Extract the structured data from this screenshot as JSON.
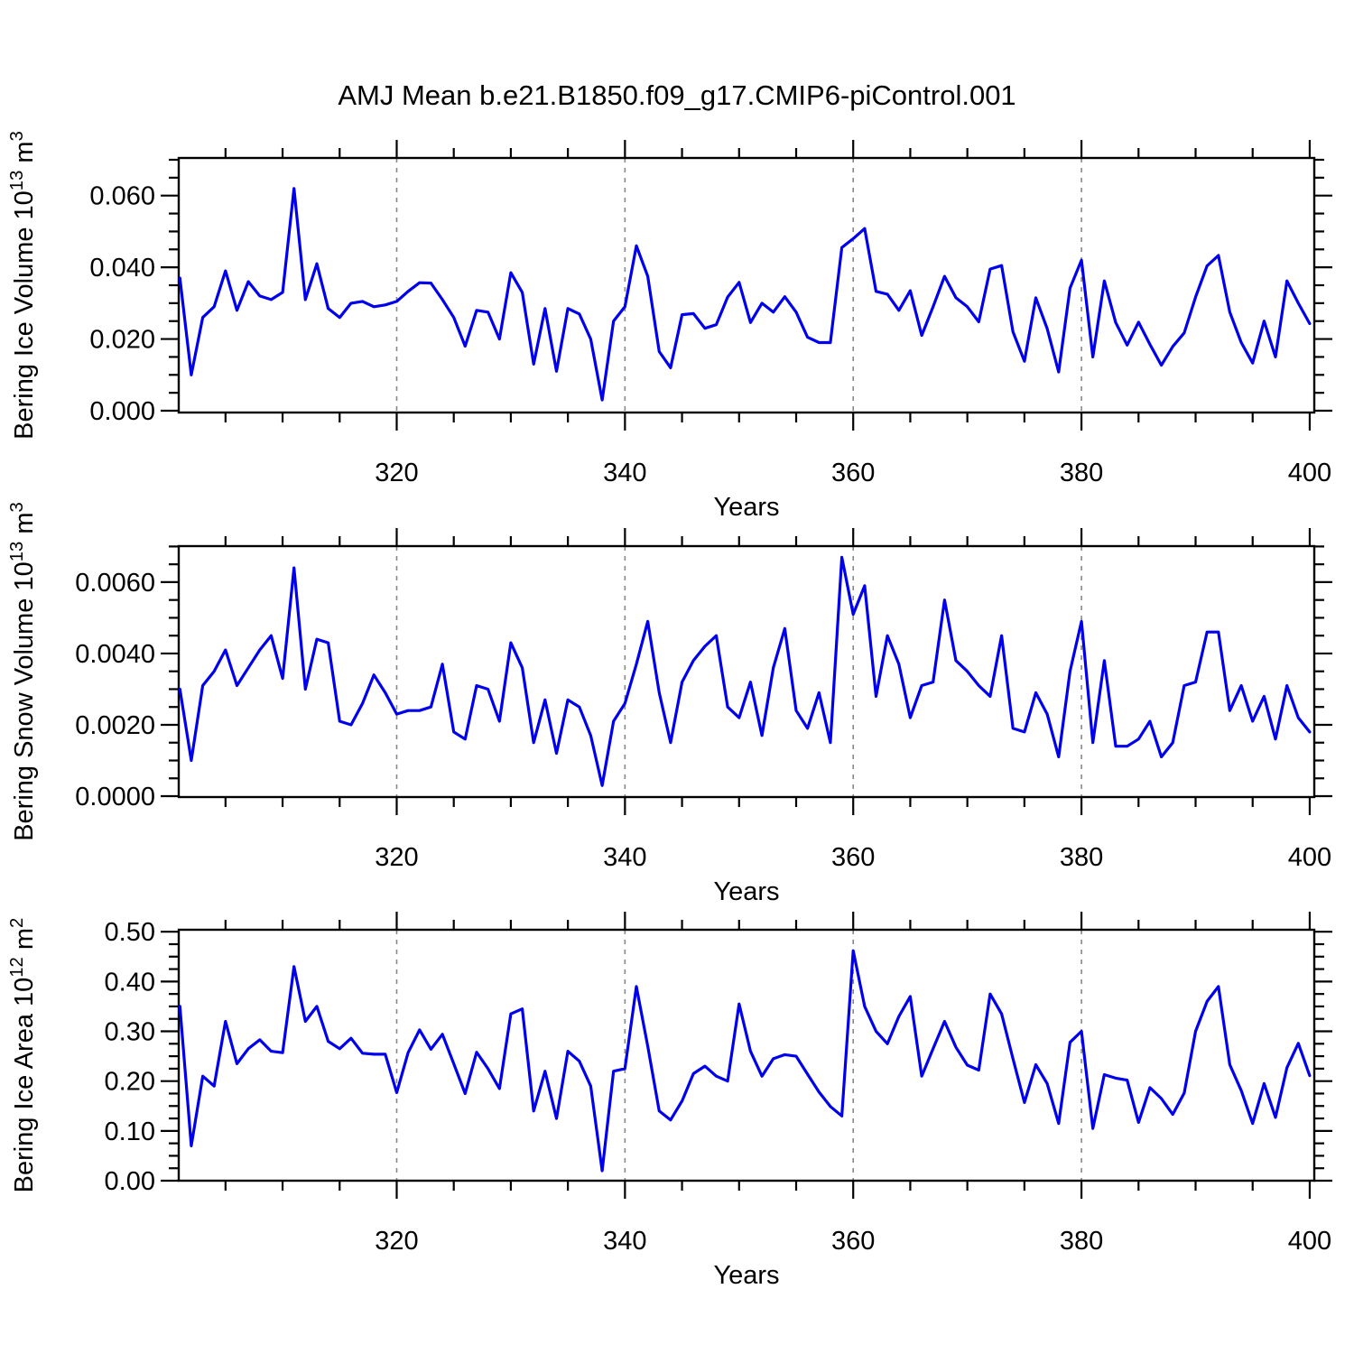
{
  "title": "AMJ Mean b.e21.B1850.f09_g17.CMIP6-piControl.001",
  "line_color": "#0000ee",
  "grid_color": "#888888",
  "axis_color": "#000000",
  "chart_data": [
    {
      "type": "line",
      "id": "ice-volume",
      "ylabel": "Bering Ice Volume 10^{13} m^{3}",
      "xlabel": "Years",
      "xlim": [
        300.9,
        400.4
      ],
      "ylim": [
        -0.0005,
        0.0705
      ],
      "xticks": [
        320,
        340,
        360,
        380,
        400
      ],
      "xtick_labels": [
        "320",
        "340",
        "360",
        "380",
        "400"
      ],
      "x_minor_step": 5,
      "yticks": [
        0.0,
        0.02,
        0.04,
        0.06
      ],
      "ytick_labels": [
        "0.000",
        "0.020",
        "0.040",
        "0.060"
      ],
      "y_minor_step": 0.005,
      "grid_x": [
        320,
        340,
        360,
        380
      ],
      "legend": "none",
      "x_start": 301,
      "x_step": 1,
      "values": [
        0.037,
        0.01,
        0.026,
        0.029,
        0.039,
        0.028,
        0.036,
        0.032,
        0.031,
        0.033,
        0.062,
        0.031,
        0.041,
        0.0285,
        0.026,
        0.03,
        0.0305,
        0.029,
        0.0295,
        0.0305,
        0.0333,
        0.0357,
        0.0356,
        0.031,
        0.026,
        0.018,
        0.028,
        0.0275,
        0.02,
        0.0385,
        0.033,
        0.013,
        0.0285,
        0.011,
        0.0285,
        0.027,
        0.02,
        0.003,
        0.025,
        0.029,
        0.046,
        0.0375,
        0.0165,
        0.012,
        0.0268,
        0.0271,
        0.023,
        0.024,
        0.0317,
        0.0358,
        0.0246,
        0.03,
        0.0275,
        0.0318,
        0.0275,
        0.0205,
        0.019,
        0.019,
        0.0455,
        0.048,
        0.0508,
        0.0333,
        0.0325,
        0.028,
        0.0335,
        0.021,
        0.029,
        0.0375,
        0.0315,
        0.029,
        0.0248,
        0.0395,
        0.0405,
        0.022,
        0.0138,
        0.0315,
        0.0229,
        0.0108,
        0.0342,
        0.042,
        0.015,
        0.0362,
        0.0246,
        0.0183,
        0.0247,
        0.0185,
        0.0127,
        0.0179,
        0.0217,
        0.0317,
        0.0404,
        0.0433,
        0.0275,
        0.019,
        0.0133,
        0.025,
        0.015,
        0.0362,
        0.03,
        0.0243
      ]
    },
    {
      "type": "line",
      "id": "snow-volume",
      "ylabel": "Bering Snow Volume 10^{13} m^{3}",
      "xlabel": "Years",
      "xlim": [
        300.9,
        400.4
      ],
      "ylim": [
        -2.5e-05,
        0.00701
      ],
      "xticks": [
        320,
        340,
        360,
        380,
        400
      ],
      "xtick_labels": [
        "320",
        "340",
        "360",
        "380",
        "400"
      ],
      "x_minor_step": 5,
      "yticks": [
        0.0,
        0.002,
        0.004,
        0.006
      ],
      "ytick_labels": [
        "0.0000",
        "0.0020",
        "0.0040",
        "0.0060"
      ],
      "y_minor_step": 0.0005,
      "grid_x": [
        320,
        340,
        360,
        380
      ],
      "legend": "none",
      "x_start": 301,
      "x_step": 1,
      "values": [
        0.003,
        0.001,
        0.0031,
        0.0035,
        0.0041,
        0.0031,
        0.0036,
        0.0041,
        0.0045,
        0.0033,
        0.0064,
        0.003,
        0.0044,
        0.0043,
        0.0021,
        0.002,
        0.0026,
        0.0034,
        0.0029,
        0.0023,
        0.0024,
        0.0024,
        0.0025,
        0.0037,
        0.0018,
        0.0016,
        0.0031,
        0.003,
        0.0021,
        0.0043,
        0.0036,
        0.0015,
        0.0027,
        0.0012,
        0.0027,
        0.0025,
        0.0017,
        0.0003,
        0.0021,
        0.0026,
        0.0037,
        0.0049,
        0.0029,
        0.0015,
        0.0032,
        0.0038,
        0.0042,
        0.0045,
        0.0025,
        0.0022,
        0.0032,
        0.0017,
        0.0036,
        0.0047,
        0.0024,
        0.0019,
        0.0029,
        0.0015,
        0.0067,
        0.0051,
        0.0059,
        0.0028,
        0.0045,
        0.0037,
        0.0022,
        0.0031,
        0.0032,
        0.0055,
        0.0038,
        0.0035,
        0.0031,
        0.0028,
        0.0045,
        0.0019,
        0.0018,
        0.0029,
        0.0023,
        0.0011,
        0.0035,
        0.0049,
        0.0015,
        0.0038,
        0.0014,
        0.0014,
        0.0016,
        0.0021,
        0.0011,
        0.0015,
        0.0031,
        0.0032,
        0.0046,
        0.0046,
        0.0024,
        0.0031,
        0.0021,
        0.0028,
        0.0016,
        0.0031,
        0.0022,
        0.0018
      ]
    },
    {
      "type": "line",
      "id": "ice-area",
      "ylabel": "Bering Ice Area 10^{12} m^{2}",
      "xlabel": "Years",
      "xlim": [
        300.9,
        400.4
      ],
      "ylim": [
        0.0,
        0.504
      ],
      "xticks": [
        320,
        340,
        360,
        380,
        400
      ],
      "xtick_labels": [
        "320",
        "340",
        "360",
        "380",
        "400"
      ],
      "x_minor_step": 5,
      "yticks": [
        0.0,
        0.1,
        0.2,
        0.3,
        0.4,
        0.5
      ],
      "ytick_labels": [
        "0.00",
        "0.10",
        "0.20",
        "0.30",
        "0.40",
        "0.50"
      ],
      "y_minor_step": 0.025,
      "grid_x": [
        320,
        340,
        360,
        380
      ],
      "legend": "none",
      "x_start": 301,
      "x_step": 1,
      "values": [
        0.35,
        0.07,
        0.21,
        0.19,
        0.32,
        0.235,
        0.265,
        0.283,
        0.26,
        0.257,
        0.43,
        0.32,
        0.35,
        0.28,
        0.265,
        0.286,
        0.256,
        0.254,
        0.254,
        0.177,
        0.257,
        0.303,
        0.264,
        0.294,
        0.235,
        0.175,
        0.258,
        0.225,
        0.185,
        0.335,
        0.345,
        0.14,
        0.22,
        0.125,
        0.26,
        0.24,
        0.19,
        0.02,
        0.22,
        0.225,
        0.39,
        0.27,
        0.14,
        0.122,
        0.16,
        0.215,
        0.23,
        0.21,
        0.2,
        0.355,
        0.26,
        0.21,
        0.245,
        0.253,
        0.25,
        0.214,
        0.178,
        0.149,
        0.13,
        0.462,
        0.35,
        0.3,
        0.275,
        0.33,
        0.37,
        0.21,
        0.265,
        0.32,
        0.268,
        0.232,
        0.222,
        0.375,
        0.335,
        0.245,
        0.157,
        0.233,
        0.195,
        0.115,
        0.278,
        0.3,
        0.105,
        0.213,
        0.206,
        0.202,
        0.117,
        0.187,
        0.165,
        0.133,
        0.176,
        0.3,
        0.36,
        0.39,
        0.233,
        0.181,
        0.115,
        0.195,
        0.127,
        0.227,
        0.276,
        0.211
      ]
    }
  ]
}
